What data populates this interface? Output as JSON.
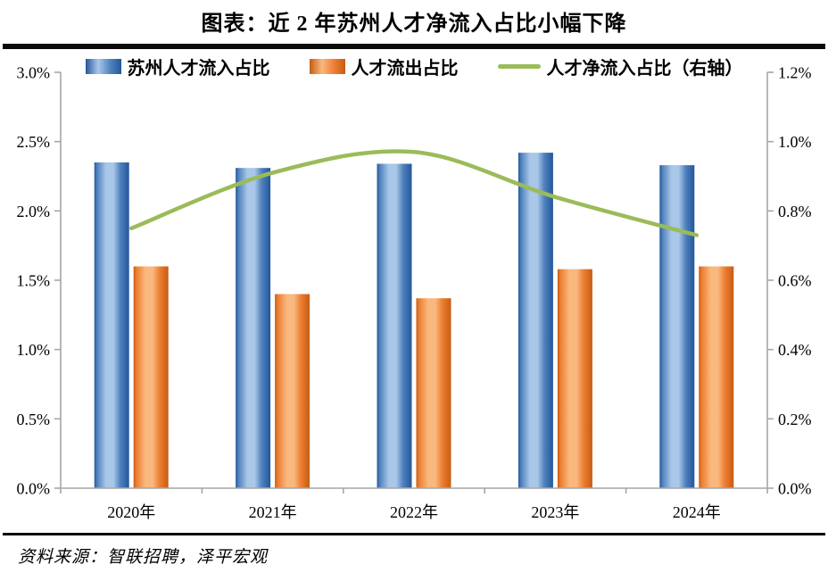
{
  "title": "图表：近 2 年苏州人才净流入占比小幅下降",
  "source": "资料来源：智联招聘，泽平宏观",
  "legend": [
    {
      "label": "苏州人才流入占比",
      "type": "bar",
      "color": "#4f81bd"
    },
    {
      "label": "人才流出占比",
      "type": "bar",
      "color": "#ed7d31"
    },
    {
      "label": "人才净流入占比（右轴）",
      "type": "line",
      "color": "#9bbb59"
    }
  ],
  "chart_data": {
    "type": "bar",
    "categories": [
      "2020年",
      "2021年",
      "2022年",
      "2023年",
      "2024年"
    ],
    "series": [
      {
        "name": "苏州人才流入占比",
        "type": "bar",
        "axis": "left",
        "color": "#4f81bd",
        "color_light": "#a9c7e8",
        "color_dark": "#24579b",
        "values": [
          2.35,
          2.31,
          2.34,
          2.42,
          2.33
        ]
      },
      {
        "name": "人才流出占比",
        "type": "bar",
        "axis": "left",
        "color": "#ed7d31",
        "color_light": "#f9b87e",
        "color_dark": "#c55d13",
        "values": [
          1.6,
          1.4,
          1.37,
          1.58,
          1.6
        ]
      },
      {
        "name": "人才净流入占比（右轴）",
        "type": "line",
        "axis": "right",
        "color": "#9bbb59",
        "values": [
          0.75,
          0.91,
          0.97,
          0.84,
          0.73
        ]
      }
    ],
    "left_axis": {
      "min": 0,
      "max": 3.0,
      "step": 0.5,
      "tick_labels": [
        "3.0%",
        "2.5%",
        "2.0%",
        "1.5%",
        "1.0%",
        "0.5%",
        "0.0%"
      ]
    },
    "right_axis": {
      "min": 0,
      "max": 1.2,
      "step": 0.2,
      "tick_labels": [
        "1.2%",
        "1.0%",
        "0.8%",
        "0.6%",
        "0.4%",
        "0.2%",
        "0.0%"
      ]
    },
    "legend_position": "top",
    "grid": false,
    "axis_color": "#a6a6a6",
    "label_color": "#000000"
  }
}
